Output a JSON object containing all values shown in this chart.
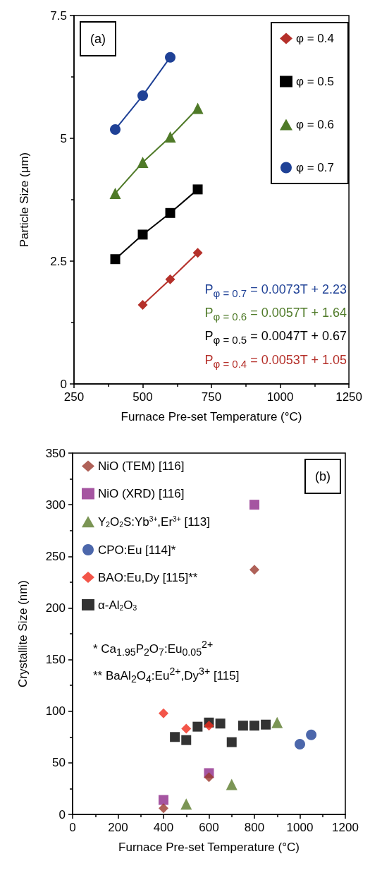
{
  "chart_data": [
    {
      "type": "line",
      "annotations": [
        "(a)",
        "P$_{φ = 0.7}$ = 0.0073T + 2.23",
        "P$_{φ = 0.6}$ = 0.0057T + 1.64",
        "P$_{φ = 0.5}$ = 0.0047T + 0.67",
        "P$_{φ = 0.4}$ = 0.0053T + 1.05"
      ],
      "xlabel": "Furnace Pre-set Temperature (°C)",
      "ylabel": "Particle Size (μm)",
      "xlim": [
        250,
        1250
      ],
      "xticks": [
        250,
        500,
        750,
        1000,
        1250
      ],
      "ylim": [
        0,
        7.5
      ],
      "yticks": [
        0,
        2.5,
        5,
        7.5
      ],
      "grid": false,
      "legend": "top right",
      "line_style": "solid",
      "series": [
        {
          "name": "φ = 0.4",
          "color": "#b5302a",
          "marker": "diamond",
          "x": [
            500,
            600,
            700
          ],
          "values": [
            1.61,
            2.13,
            2.67
          ]
        },
        {
          "name": "φ = 0.5",
          "color": "#000000",
          "marker": "square",
          "x": [
            400,
            500,
            600,
            700
          ],
          "values": [
            2.54,
            3.04,
            3.48,
            3.96
          ]
        },
        {
          "name": "φ = 0.6",
          "color": "#4f7a28",
          "marker": "triangle",
          "x": [
            400,
            500,
            600,
            700
          ],
          "values": [
            3.88,
            4.51,
            5.03,
            5.61
          ]
        },
        {
          "name": "φ = 0.7",
          "color": "#1f4196",
          "marker": "circle",
          "x": [
            400,
            500,
            600
          ],
          "values": [
            5.18,
            5.87,
            6.65
          ]
        }
      ]
    },
    {
      "type": "scatter",
      "annotations": [
        "(b)",
        "* Ca$_{1.95}$P$_{2}$O$_{7}$:Eu$_{0.05}$$^{2+}$",
        "** BaAl$_{2}$O$_{4}$:Eu$^{2+}$,Dy$^{3+}$ [115]"
      ],
      "xlabel": "Furnace Pre-set Temperature (°C)",
      "ylabel": "Crystallite Size (nm)",
      "xlim": [
        0,
        1200
      ],
      "xticks": [
        0,
        200,
        400,
        600,
        800,
        1000,
        1200
      ],
      "ylim": [
        0,
        350
      ],
      "yticks": [
        0,
        50,
        100,
        150,
        200,
        250,
        300,
        350
      ],
      "grid": false,
      "legend": "top left",
      "series": [
        {
          "name": "NiO (TEM) [116]",
          "color": "#9b3a2e",
          "marker": "diamond",
          "x": [
            400,
            600,
            800
          ],
          "values": [
            6,
            36,
            237
          ]
        },
        {
          "name": "NiO (XRD) [116]",
          "color": "#8e2a8a",
          "marker": "square",
          "x": [
            400,
            600,
            800
          ],
          "values": [
            14,
            40,
            300
          ]
        },
        {
          "name": "Y$_{2}$O$_{2}$S:Yb$^{3+}$,Er$^{3+}$ [113]",
          "color": "#5a7a2a",
          "marker": "triangle",
          "x": [
            500,
            700,
            900
          ],
          "values": [
            10,
            29,
            89
          ]
        },
        {
          "name": "CPO:Eu [114]*",
          "color": "#1f4196",
          "marker": "circle",
          "x": [
            1000,
            1050
          ],
          "values": [
            68,
            77
          ]
        },
        {
          "name": "BAO:Eu,Dy [115]**",
          "color": "#f02a1c",
          "marker": "diamond",
          "x": [
            400,
            500,
            600
          ],
          "values": [
            98,
            83,
            86
          ]
        },
        {
          "name": "α-Al$_{2}$O$_{3}$",
          "color": "#000000",
          "marker": "square",
          "x": [
            450,
            500,
            550,
            600,
            650,
            700,
            750,
            800,
            850
          ],
          "values": [
            75,
            72,
            85,
            89,
            88,
            70,
            86,
            86,
            87
          ]
        }
      ]
    }
  ]
}
